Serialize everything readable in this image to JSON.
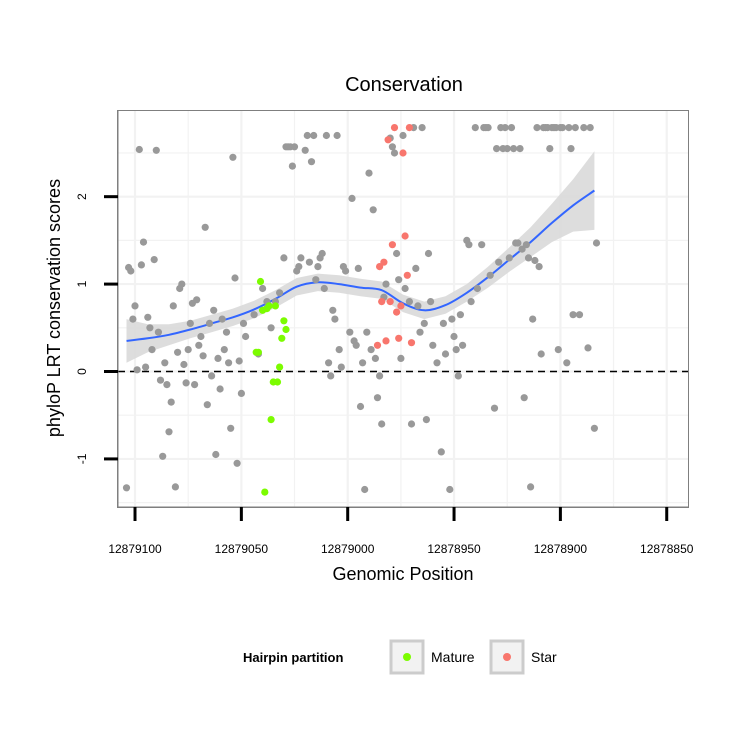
{
  "chart_data": {
    "type": "scatter",
    "title": "Conservation",
    "xlabel": "Genomic Position",
    "ylabel": "phyloP LRT conservation scores",
    "x_reversed": true,
    "xlim": [
      12879108,
      12878840
    ],
    "ylim": [
      -1.55,
      2.98
    ],
    "x_ticks": [
      12879100,
      12879050,
      12879000,
      12878950,
      12878900,
      12878850
    ],
    "x_tick_labels": [
      "12879100",
      "12879050",
      "12879000",
      "12878950",
      "12878900",
      "12878850"
    ],
    "y_ticks": [
      -1,
      0,
      1,
      2
    ],
    "y_tick_labels": [
      "-1",
      "0",
      "1",
      "2"
    ],
    "grid": true,
    "reference_line": {
      "y": 0,
      "style": "dashed"
    },
    "legend": {
      "title": "Hairpin partition",
      "position": "bottom",
      "entries": [
        {
          "label": "Mature",
          "color": "#7CFC00"
        },
        {
          "label": "Star",
          "color": "#F8766D"
        }
      ]
    },
    "colors": {
      "other": "#999999",
      "mature": "#7CFC00",
      "star": "#F8766D",
      "smooth": "#3366FF",
      "band": "#D9D9D9"
    },
    "series": [
      {
        "group": "other",
        "points": [
          [
            12879104,
            -1.33
          ],
          [
            12879103,
            1.19
          ],
          [
            12879102,
            1.15
          ],
          [
            12879101,
            0.6
          ],
          [
            12879100,
            0.75
          ],
          [
            12879099,
            0.02
          ],
          [
            12879098,
            2.54
          ],
          [
            12879097,
            1.22
          ],
          [
            12879096,
            1.48
          ],
          [
            12879095,
            0.05
          ],
          [
            12879094,
            0.62
          ],
          [
            12879093,
            0.5
          ],
          [
            12879092,
            0.25
          ],
          [
            12879091,
            1.28
          ],
          [
            12879090,
            2.53
          ],
          [
            12879089,
            0.45
          ],
          [
            12879088,
            -0.1
          ],
          [
            12879087,
            -0.97
          ],
          [
            12879086,
            0.1
          ],
          [
            12879085,
            -0.15
          ],
          [
            12879084,
            -0.69
          ],
          [
            12879083,
            -0.35
          ],
          [
            12879082,
            0.75
          ],
          [
            12879081,
            -1.32
          ],
          [
            12879080,
            0.22
          ],
          [
            12879079,
            0.95
          ],
          [
            12879078,
            1.0
          ],
          [
            12879077,
            0.08
          ],
          [
            12879076,
            -0.13
          ],
          [
            12879075,
            0.25
          ],
          [
            12879074,
            0.55
          ],
          [
            12879073,
            0.78
          ],
          [
            12879072,
            -0.15
          ],
          [
            12879071,
            0.82
          ],
          [
            12879070,
            0.3
          ],
          [
            12879069,
            0.4
          ],
          [
            12879068,
            0.18
          ],
          [
            12879067,
            1.65
          ],
          [
            12879066,
            -0.38
          ],
          [
            12879065,
            0.55
          ],
          [
            12879064,
            -0.05
          ],
          [
            12879063,
            0.7
          ],
          [
            12879062,
            -0.95
          ],
          [
            12879061,
            0.15
          ],
          [
            12879060,
            -0.2
          ],
          [
            12879059,
            0.6
          ],
          [
            12879058,
            0.25
          ],
          [
            12879057,
            0.45
          ],
          [
            12879056,
            0.1
          ],
          [
            12879055,
            -0.65
          ],
          [
            12879054,
            2.45
          ],
          [
            12879053,
            1.07
          ],
          [
            12879052,
            -1.05
          ],
          [
            12879051,
            0.12
          ],
          [
            12879050,
            -0.25
          ],
          [
            12879049,
            0.55
          ],
          [
            12879048,
            0.4
          ],
          [
            12879044,
            0.65
          ],
          [
            12879042,
            0.2
          ],
          [
            12879040,
            0.95
          ],
          [
            12879038,
            0.8
          ],
          [
            12879036,
            0.5
          ],
          [
            12879034,
            0.8
          ],
          [
            12879032,
            0.9
          ],
          [
            12879030,
            1.3
          ],
          [
            12879029,
            2.57
          ],
          [
            12879028,
            2.57
          ],
          [
            12879027,
            2.57
          ],
          [
            12879026,
            2.35
          ],
          [
            12879025,
            2.57
          ],
          [
            12879024,
            1.15
          ],
          [
            12879023,
            1.2
          ],
          [
            12879022,
            1.3
          ],
          [
            12879020,
            2.53
          ],
          [
            12879019,
            2.7
          ],
          [
            12879018,
            1.25
          ],
          [
            12879017,
            2.4
          ],
          [
            12879016,
            2.7
          ],
          [
            12879015,
            1.05
          ],
          [
            12879014,
            1.2
          ],
          [
            12879013,
            1.3
          ],
          [
            12879012,
            1.35
          ],
          [
            12879011,
            0.95
          ],
          [
            12879010,
            2.7
          ],
          [
            12879009,
            0.1
          ],
          [
            12879008,
            -0.05
          ],
          [
            12879007,
            0.7
          ],
          [
            12879006,
            0.6
          ],
          [
            12879005,
            2.7
          ],
          [
            12879004,
            0.25
          ],
          [
            12879003,
            0.05
          ],
          [
            12879002,
            1.2
          ],
          [
            12879001,
            1.15
          ],
          [
            12878999,
            0.45
          ],
          [
            12878998,
            1.98
          ],
          [
            12878997,
            0.35
          ],
          [
            12878996,
            0.3
          ],
          [
            12878995,
            1.18
          ],
          [
            12878994,
            -0.4
          ],
          [
            12878993,
            0.1
          ],
          [
            12878992,
            -1.35
          ],
          [
            12878991,
            0.45
          ],
          [
            12878990,
            2.27
          ],
          [
            12878989,
            0.25
          ],
          [
            12878988,
            1.85
          ],
          [
            12878987,
            0.15
          ],
          [
            12878986,
            -0.3
          ],
          [
            12878985,
            -0.05
          ],
          [
            12878984,
            -0.6
          ],
          [
            12878983,
            0.85
          ],
          [
            12878982,
            1.0
          ],
          [
            12878980,
            2.67
          ],
          [
            12878979,
            2.57
          ],
          [
            12878978,
            2.5
          ],
          [
            12878977,
            1.35
          ],
          [
            12878976,
            1.05
          ],
          [
            12878975,
            0.15
          ],
          [
            12878974,
            2.7
          ],
          [
            12878973,
            0.95
          ],
          [
            12878971,
            0.8
          ],
          [
            12878970,
            -0.6
          ],
          [
            12878969,
            2.79
          ],
          [
            12878968,
            1.18
          ],
          [
            12878967,
            0.75
          ],
          [
            12878966,
            0.45
          ],
          [
            12878965,
            2.79
          ],
          [
            12878964,
            0.55
          ],
          [
            12878963,
            -0.55
          ],
          [
            12878962,
            1.35
          ],
          [
            12878961,
            0.8
          ],
          [
            12878960,
            0.3
          ],
          [
            12878958,
            0.1
          ],
          [
            12878956,
            -0.92
          ],
          [
            12878955,
            0.55
          ],
          [
            12878954,
            0.2
          ],
          [
            12878952,
            -1.35
          ],
          [
            12878951,
            0.6
          ],
          [
            12878950,
            0.4
          ],
          [
            12878949,
            0.25
          ],
          [
            12878948,
            -0.05
          ],
          [
            12878947,
            0.65
          ],
          [
            12878946,
            0.3
          ],
          [
            12878944,
            1.5
          ],
          [
            12878943,
            1.45
          ],
          [
            12878942,
            0.8
          ],
          [
            12878940,
            2.79
          ],
          [
            12878939,
            0.95
          ],
          [
            12878937,
            1.45
          ],
          [
            12878936,
            2.79
          ],
          [
            12878935,
            2.79
          ],
          [
            12878934,
            2.79
          ],
          [
            12878933,
            1.1
          ],
          [
            12878931,
            -0.42
          ],
          [
            12878930,
            2.55
          ],
          [
            12878929,
            1.25
          ],
          [
            12878928,
            2.79
          ],
          [
            12878927,
            2.55
          ],
          [
            12878926,
            2.79
          ],
          [
            12878925,
            2.55
          ],
          [
            12878924,
            1.3
          ],
          [
            12878923,
            2.79
          ],
          [
            12878922,
            2.55
          ],
          [
            12878921,
            1.47
          ],
          [
            12878920,
            1.47
          ],
          [
            12878919,
            2.55
          ],
          [
            12878918,
            1.4
          ],
          [
            12878917,
            -0.3
          ],
          [
            12878916,
            1.45
          ],
          [
            12878915,
            1.3
          ],
          [
            12878914,
            -1.32
          ],
          [
            12878913,
            0.6
          ],
          [
            12878912,
            1.27
          ],
          [
            12878911,
            2.79
          ],
          [
            12878910,
            1.2
          ],
          [
            12878909,
            0.2
          ],
          [
            12878908,
            2.79
          ],
          [
            12878907,
            2.79
          ],
          [
            12878906,
            2.79
          ],
          [
            12878905,
            2.55
          ],
          [
            12878904,
            2.79
          ],
          [
            12878903,
            2.79
          ],
          [
            12878902,
            2.79
          ],
          [
            12878901,
            0.25
          ],
          [
            12878900,
            2.79
          ],
          [
            12878899,
            2.79
          ],
          [
            12878897,
            0.1
          ],
          [
            12878896,
            2.79
          ],
          [
            12878895,
            2.55
          ],
          [
            12878894,
            0.65
          ],
          [
            12878893,
            2.79
          ],
          [
            12878891,
            0.65
          ],
          [
            12878889,
            2.79
          ],
          [
            12878887,
            0.27
          ],
          [
            12878886,
            2.79
          ],
          [
            12878884,
            -0.65
          ],
          [
            12878883,
            1.47
          ]
        ]
      },
      {
        "group": "mature",
        "points": [
          [
            12879043,
            0.22
          ],
          [
            12879042,
            0.22
          ],
          [
            12879041,
            1.03
          ],
          [
            12879040,
            0.7
          ],
          [
            12879039,
            -1.38
          ],
          [
            12879038,
            0.72
          ],
          [
            12879037,
            0.75
          ],
          [
            12879036,
            -0.55
          ],
          [
            12879035,
            -0.12
          ],
          [
            12879034,
            0.75
          ],
          [
            12879033,
            -0.12
          ],
          [
            12879032,
            0.05
          ],
          [
            12879031,
            0.38
          ],
          [
            12879030,
            0.58
          ],
          [
            12879029,
            0.48
          ]
        ]
      },
      {
        "group": "star",
        "points": [
          [
            12878986,
            0.3
          ],
          [
            12878985,
            1.2
          ],
          [
            12878984,
            0.8
          ],
          [
            12878983,
            1.25
          ],
          [
            12878982,
            0.35
          ],
          [
            12878981,
            2.65
          ],
          [
            12878980,
            0.8
          ],
          [
            12878979,
            1.45
          ],
          [
            12878978,
            2.79
          ],
          [
            12878977,
            0.68
          ],
          [
            12878976,
            0.38
          ],
          [
            12878975,
            0.75
          ],
          [
            12878974,
            2.5
          ],
          [
            12878973,
            1.55
          ],
          [
            12878972,
            1.1
          ],
          [
            12878971,
            2.79
          ],
          [
            12878970,
            0.33
          ]
        ]
      }
    ],
    "smooth_line": {
      "x": [
        12879104,
        12879094,
        12879084,
        12879074,
        12879064,
        12879054,
        12879044,
        12879034,
        12879024,
        12879014,
        12879004,
        12878994,
        12878984,
        12878974,
        12878964,
        12878954,
        12878944,
        12878934,
        12878924,
        12878914,
        12878904,
        12878894,
        12878884
      ],
      "y": [
        0.35,
        0.38,
        0.42,
        0.48,
        0.55,
        0.62,
        0.71,
        0.83,
        0.97,
        1.02,
        1.0,
        0.96,
        0.93,
        0.78,
        0.7,
        0.76,
        0.9,
        1.08,
        1.28,
        1.48,
        1.7,
        1.9,
        2.07
      ],
      "se": [
        0.25,
        0.16,
        0.12,
        0.1,
        0.1,
        0.1,
        0.1,
        0.1,
        0.1,
        0.1,
        0.1,
        0.1,
        0.1,
        0.1,
        0.1,
        0.1,
        0.1,
        0.12,
        0.14,
        0.17,
        0.22,
        0.3,
        0.45
      ]
    }
  }
}
